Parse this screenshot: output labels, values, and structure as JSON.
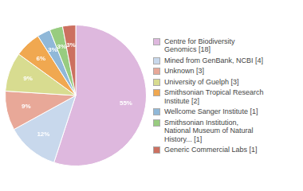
{
  "chart_data": {
    "type": "pie",
    "categories": [
      "Centre for Biodiversity\nGenomics [18]",
      "Mined from GenBank, NCBI [4]",
      "Unknown [3]",
      "University of Guelph [3]",
      "Smithsonian Tropical Research\nInstitute [2]",
      "Wellcome Sanger Institute [1]",
      "Smithsonian Institution,\nNational Museum of Natural\nHistory... [1]",
      "Generic Commercial Labs [1]"
    ],
    "values": [
      55,
      12,
      9,
      9,
      6,
      3,
      3,
      3
    ],
    "value_labels": [
      "55%",
      "12%",
      "9%",
      "9%",
      "6%",
      "3%",
      "3%",
      "3%"
    ],
    "colors": [
      "#deb8de",
      "#c8d8ec",
      "#e8a898",
      "#d8dc90",
      "#f0a850",
      "#90b8d8",
      "#98cc80",
      "#cc7060"
    ],
    "data_labels": true,
    "legend": "right"
  }
}
